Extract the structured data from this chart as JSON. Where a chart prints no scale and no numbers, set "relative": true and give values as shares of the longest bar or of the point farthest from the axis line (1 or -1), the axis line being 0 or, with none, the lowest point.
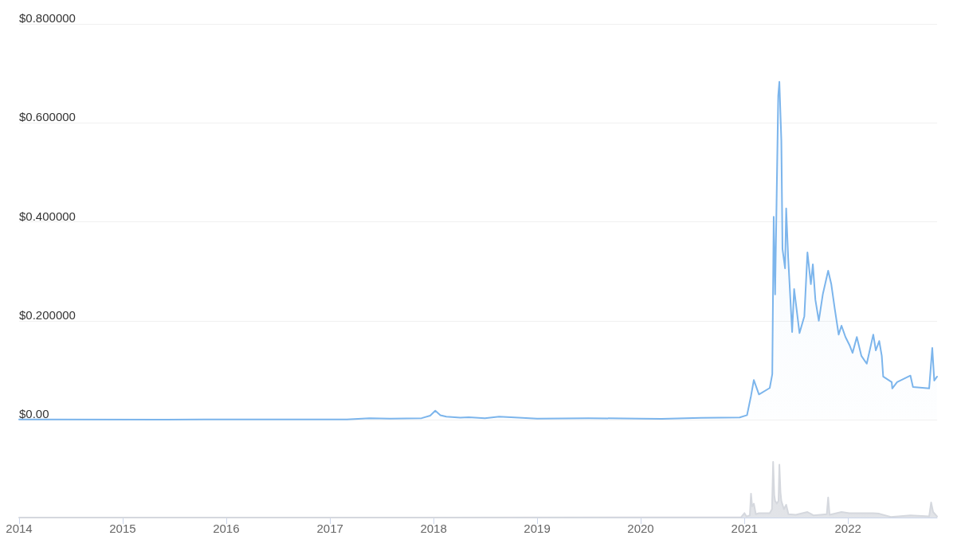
{
  "chart_data": [
    {
      "type": "area",
      "x": [
        "2014-01-01",
        "2015-06-01",
        "2016-06-01",
        "2017-03-01",
        "2017-05-20",
        "2017-08-01",
        "2017-11-20",
        "2017-12-20",
        "2018-01-07",
        "2018-01-25",
        "2018-02-15",
        "2018-04-05",
        "2018-05-05",
        "2018-07-01",
        "2018-08-20",
        "2018-10-01",
        "2019-01-01",
        "2019-07-01",
        "2020-01-01",
        "2020-03-15",
        "2020-08-01",
        "2020-12-15",
        "2021-01-10",
        "2021-01-24",
        "2021-02-03",
        "2021-02-21",
        "2021-03-31",
        "2021-04-09",
        "2021-04-14",
        "2021-04-19",
        "2021-04-30",
        "2021-05-04",
        "2021-05-11",
        "2021-05-15",
        "2021-05-24",
        "2021-05-28",
        "2021-06-04",
        "2021-06-18",
        "2021-06-25",
        "2021-07-14",
        "2021-07-31",
        "2021-08-11",
        "2021-08-23",
        "2021-08-30",
        "2021-09-08",
        "2021-09-20",
        "2021-10-04",
        "2021-10-23",
        "2021-11-03",
        "2021-11-15",
        "2021-11-29",
        "2021-12-09",
        "2021-12-23",
        "2022-01-06",
        "2022-01-17",
        "2022-02-01",
        "2022-02-17",
        "2022-03-08",
        "2022-03-31",
        "2022-04-09",
        "2022-04-21",
        "2022-04-30",
        "2022-05-05",
        "2022-06-04",
        "2022-06-06",
        "2022-06-23",
        "2022-08-09",
        "2022-08-18",
        "2022-10-14",
        "2022-10-25",
        "2022-11-01",
        "2022-11-11"
      ],
      "series": [
        {
          "color": "#7cb5ec",
          "values": [
            0.0005,
            0.0002,
            0.0003,
            0.0004,
            0.003,
            0.002,
            0.003,
            0.008,
            0.018,
            0.009,
            0.006,
            0.004,
            0.005,
            0.003,
            0.006,
            0.005,
            0.0022,
            0.003,
            0.002,
            0.0016,
            0.0035,
            0.0045,
            0.009,
            0.048,
            0.08,
            0.051,
            0.064,
            0.092,
            0.41,
            0.253,
            0.655,
            0.683,
            0.564,
            0.345,
            0.306,
            0.427,
            0.328,
            0.177,
            0.264,
            0.175,
            0.209,
            0.338,
            0.274,
            0.314,
            0.242,
            0.2,
            0.253,
            0.301,
            0.274,
            0.225,
            0.172,
            0.19,
            0.167,
            0.151,
            0.135,
            0.167,
            0.129,
            0.113,
            0.172,
            0.14,
            0.159,
            0.129,
            0.087,
            0.076,
            0.063,
            0.076,
            0.089,
            0.066,
            0.063,
            0.145,
            0.079,
            0.087
          ]
        }
      ],
      "xlim": [
        "2014-01-01",
        "2022-11-11"
      ],
      "ylim": [
        0,
        0.8
      ],
      "yticks": [
        {
          "value": 0,
          "label": "$0.00"
        },
        {
          "value": 0.2,
          "label": "$0.200000"
        },
        {
          "value": 0.4,
          "label": "$0.400000"
        },
        {
          "value": 0.6,
          "label": "$0.600000"
        },
        {
          "value": 0.8,
          "label": "$0.800000"
        }
      ],
      "tick_labels": "y",
      "grid": "y",
      "marker": "none",
      "line_style": "solid"
    },
    {
      "type": "area",
      "relative": true,
      "x": [
        "2014-01-01",
        "2020-06-01",
        "2020-12-20",
        "2021-01-01",
        "2021-01-08",
        "2021-01-20",
        "2021-01-24",
        "2021-01-28",
        "2021-02-03",
        "2021-02-10",
        "2021-02-21",
        "2021-03-31",
        "2021-04-08",
        "2021-04-12",
        "2021-04-16",
        "2021-04-19",
        "2021-04-25",
        "2021-05-01",
        "2021-05-04",
        "2021-05-08",
        "2021-05-11",
        "2021-05-20",
        "2021-05-28",
        "2021-06-05",
        "2021-07-01",
        "2021-08-11",
        "2021-09-01",
        "2021-10-18",
        "2021-10-23",
        "2021-10-28",
        "2021-12-09",
        "2022-01-06",
        "2022-03-31",
        "2022-04-21",
        "2022-06-01",
        "2022-08-09",
        "2022-10-14",
        "2022-10-21",
        "2022-10-28",
        "2022-11-11"
      ],
      "series": [
        {
          "color": "#d5d8de",
          "values": [
            0,
            0.003,
            0.005,
            0.08,
            0.02,
            0.04,
            0.43,
            0.2,
            0.25,
            0.06,
            0.08,
            0.08,
            0.15,
            1.0,
            0.4,
            0.3,
            0.25,
            0.3,
            0.95,
            0.45,
            0.3,
            0.15,
            0.23,
            0.06,
            0.05,
            0.1,
            0.04,
            0.06,
            0.36,
            0.05,
            0.1,
            0.08,
            0.08,
            0.07,
            0.01,
            0.04,
            0.02,
            0.27,
            0.1,
            0.02
          ]
        }
      ],
      "xlim": [
        "2014-01-01",
        "2022-11-11"
      ],
      "xticks": [
        "2014",
        "2015",
        "2016",
        "2017",
        "2018",
        "2019",
        "2020",
        "2021",
        "2022"
      ],
      "tick_labels": "x",
      "marker": "none",
      "line_style": "solid"
    }
  ]
}
